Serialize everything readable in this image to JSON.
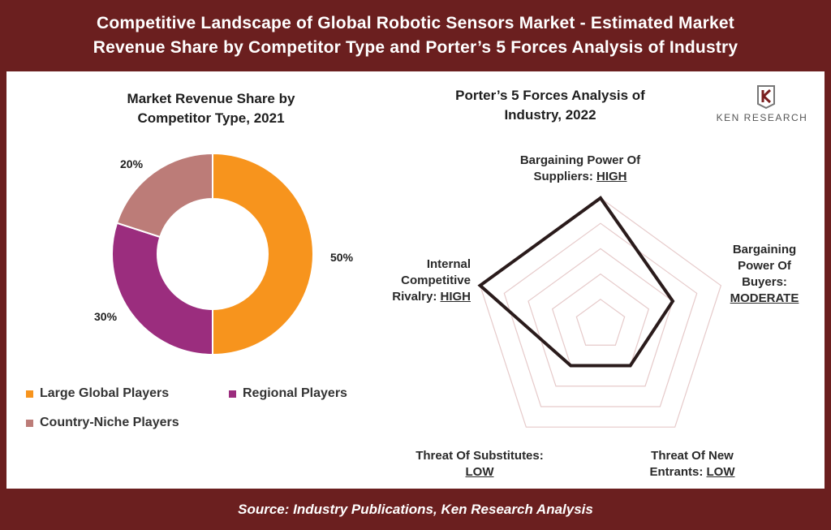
{
  "header": {
    "title_line1": "Competitive Landscape of Global Robotic Sensors Market - Estimated Market",
    "title_line2": "Revenue Share by Competitor Type and Porter’s 5 Forces Analysis of Industry"
  },
  "footer": {
    "source": "Source: Industry Publications, Ken Research Analysis"
  },
  "logo": {
    "text": "KEN RESEARCH",
    "icon": "ken-research-logo-icon"
  },
  "colors": {
    "banner": "#6b1f1f",
    "large_global": "#f7941d",
    "regional": "#9b2d7e",
    "country_niche": "#bc7c78",
    "radar_line": "#2a1b1b",
    "radar_grid": "#e6caca"
  },
  "chart_data": [
    {
      "type": "pie",
      "style": "donut",
      "title_line1": "Market Revenue Share by",
      "title_line2": "Competitor Type, 2021",
      "categories": [
        "Large Global Players",
        "Regional Players",
        "Country-Niche Players"
      ],
      "values": [
        50,
        30,
        20
      ],
      "labels": [
        "50%",
        "30%",
        "20%"
      ],
      "legend_placement": "bottom"
    },
    {
      "type": "radar",
      "title_line1": "Porter’s 5 Forces Analysis of",
      "title_line2": "Industry, 2022",
      "scale_levels": 5,
      "level_map": {
        "LOW": 2,
        "MODERATE": 3,
        "HIGH": 5
      },
      "axes": [
        {
          "name_lines": [
            "Bargaining Power Of",
            "Suppliers: "
          ],
          "rating": "HIGH",
          "value": 5
        },
        {
          "name_lines": [
            "Bargaining",
            "Power Of",
            "Buyers:"
          ],
          "rating": "MODERATE",
          "value": 3
        },
        {
          "name_lines": [
            "Threat Of New",
            "Entrants: "
          ],
          "rating": "LOW",
          "value": 2
        },
        {
          "name_lines": [
            "Threat Of Substitutes:",
            ""
          ],
          "rating": "LOW",
          "value": 2
        },
        {
          "name_lines": [
            "Internal",
            "Competitive",
            "Rivalry: "
          ],
          "rating": "HIGH",
          "value": 5
        }
      ]
    }
  ]
}
